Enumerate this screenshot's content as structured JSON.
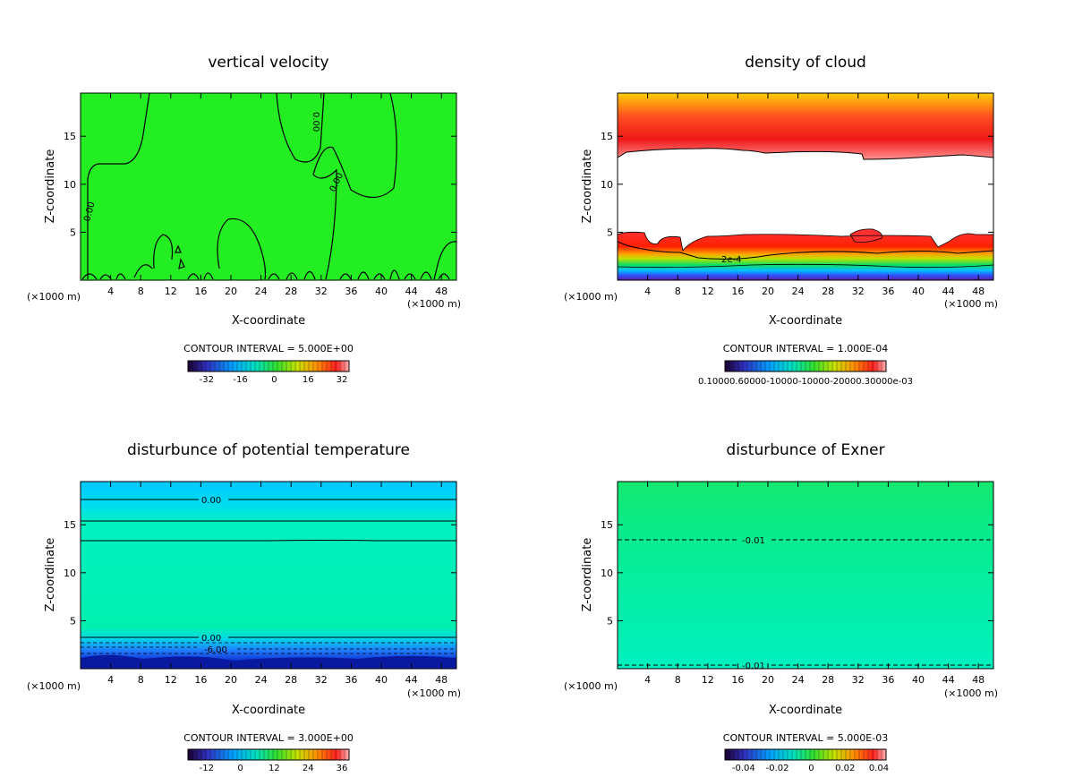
{
  "chart_data": [
    {
      "type": "heatmap",
      "title": "vertical velocity",
      "xlabel": "X-coordinate",
      "ylabel": "Z-coordinate",
      "x_unit": "(×1000 m)",
      "xlim": [
        0,
        50
      ],
      "ylim": [
        0,
        19.5
      ],
      "xticks": [
        "4",
        "8",
        "12",
        "16",
        "20",
        "24",
        "28",
        "32",
        "36",
        "40",
        "44",
        "48"
      ],
      "yticks": [
        "5",
        "10",
        "15"
      ],
      "contour_interval": "CONTOUR INTERVAL = 5.000E+00",
      "colorbar_ticks": [
        "-32",
        "-16",
        "0",
        "16",
        "32"
      ],
      "contour_labels": [
        "0.00",
        "0.00",
        "0.00"
      ],
      "field_color": "#22ee22"
    },
    {
      "type": "heatmap",
      "title": "density of cloud",
      "xlabel": "X-coordinate",
      "ylabel": "Z-coordinate",
      "x_unit": "(×1000 m)",
      "xlim": [
        0,
        50
      ],
      "ylim": [
        0,
        19.5
      ],
      "xticks": [
        "4",
        "8",
        "12",
        "16",
        "20",
        "24",
        "28",
        "32",
        "36",
        "40",
        "44",
        "48"
      ],
      "yticks": [
        "5",
        "10",
        "15"
      ],
      "contour_interval": "CONTOUR INTERVAL = 1.000E-04",
      "colorbar_ticks_text": "0.10000.60000-10000-10000-20000.30000e-03",
      "contour_labels": [
        "2e-4"
      ]
    },
    {
      "type": "heatmap",
      "title": "disturbunce of potential temperature",
      "xlabel": "X-coordinate",
      "ylabel": "Z-coordinate",
      "x_unit": "(×1000 m)",
      "xlim": [
        0,
        50
      ],
      "ylim": [
        0,
        19.5
      ],
      "xticks": [
        "4",
        "8",
        "12",
        "16",
        "20",
        "24",
        "28",
        "32",
        "36",
        "40",
        "44",
        "48"
      ],
      "yticks": [
        "5",
        "10",
        "15"
      ],
      "contour_interval": "CONTOUR INTERVAL = 3.000E+00",
      "colorbar_ticks": [
        "-12",
        "0",
        "12",
        "24",
        "36"
      ],
      "contour_labels": [
        "0.00",
        "0.00",
        "-6.00"
      ]
    },
    {
      "type": "heatmap",
      "title": "disturbunce of Exner",
      "xlabel": "X-coordinate",
      "ylabel": "Z-coordinate",
      "x_unit": "(×1000 m)",
      "xlim": [
        0,
        50
      ],
      "ylim": [
        0,
        19.5
      ],
      "xticks": [
        "4",
        "8",
        "12",
        "16",
        "20",
        "24",
        "28",
        "32",
        "36",
        "40",
        "44",
        "48"
      ],
      "yticks": [
        "5",
        "10",
        "15"
      ],
      "contour_interval": "CONTOUR INTERVAL = 5.000E-03",
      "colorbar_ticks": [
        "-0.04",
        "-0.02",
        "0",
        "0.02",
        "0.04"
      ],
      "contour_labels": [
        "-0.01",
        "-0.01"
      ]
    }
  ]
}
